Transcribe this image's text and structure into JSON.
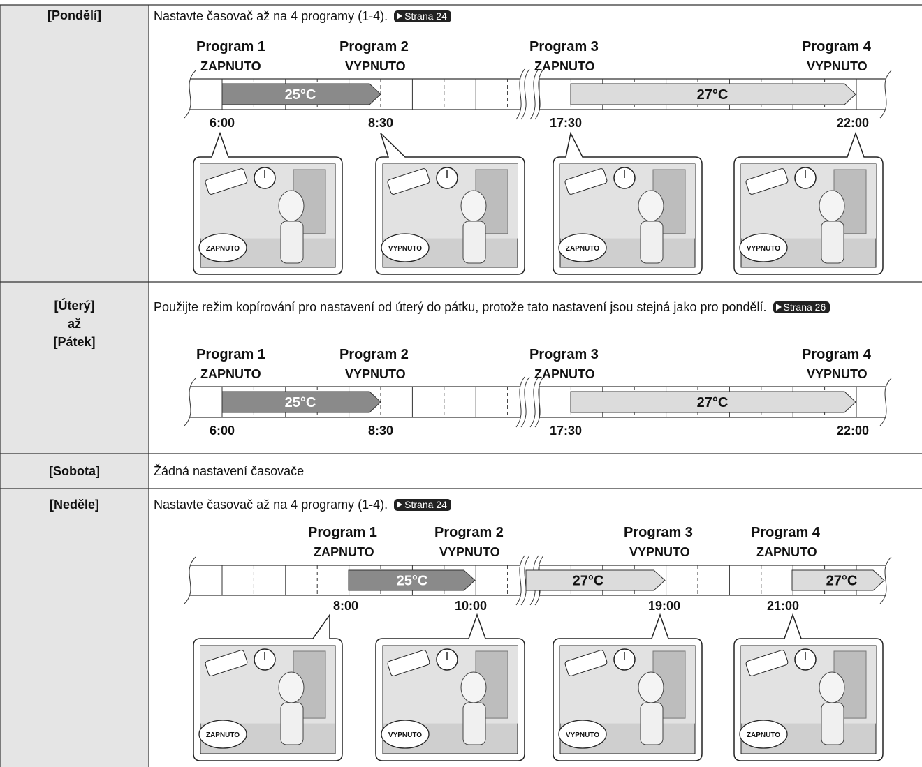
{
  "rows": [
    {
      "day": [
        "[Pondělí]"
      ],
      "text": "Nastavte časovač až na 4 programy (1-4).",
      "link": "Strana 24",
      "programs": [
        {
          "name": "Program 1",
          "state": "ZAPNUTO",
          "time": "6:00"
        },
        {
          "name": "Program 2",
          "state": "VYPNUTO",
          "time": "8:30"
        },
        {
          "name": "Program 3",
          "state": "ZAPNUTO",
          "time": "17:30"
        },
        {
          "name": "Program 4",
          "state": "VYPNUTO",
          "time": "22:00"
        }
      ],
      "temps": [
        "25°C",
        "27°C"
      ],
      "bubbles": [
        "ZAPNUTO",
        "VYPNUTO",
        "ZAPNUTO",
        "VYPNUTO"
      ]
    },
    {
      "day": [
        "[Úterý]",
        "až",
        "[Pátek]"
      ],
      "text": "Použijte režim kopírování pro nastavení od úterý do pátku, protože tato nastavení jsou stejná jako pro pondělí.",
      "link": "Strana 26",
      "programs": [
        {
          "name": "Program 1",
          "state": "ZAPNUTO",
          "time": "6:00"
        },
        {
          "name": "Program 2",
          "state": "VYPNUTO",
          "time": "8:30"
        },
        {
          "name": "Program 3",
          "state": "ZAPNUTO",
          "time": "17:30"
        },
        {
          "name": "Program 4",
          "state": "VYPNUTO",
          "time": "22:00"
        }
      ],
      "temps": [
        "25°C",
        "27°C"
      ]
    },
    {
      "day": [
        "[Sobota]"
      ],
      "text": "Žádná nastavení časovače"
    },
    {
      "day": [
        "[Neděle]"
      ],
      "text": "Nastavte časovač až na 4 programy (1-4).",
      "link": "Strana 24",
      "programs": [
        {
          "name": "Program 1",
          "state": "ZAPNUTO",
          "time": "8:00"
        },
        {
          "name": "Program 2",
          "state": "VYPNUTO",
          "time": "10:00"
        },
        {
          "name": "Program 3",
          "state": "VYPNUTO",
          "time": "19:00"
        },
        {
          "name": "Program 4",
          "state": "ZAPNUTO",
          "time": "21:00"
        }
      ],
      "temps": [
        "25°C",
        "27°C",
        "27°C"
      ],
      "bubbles": [
        "ZAPNUTO",
        "VYPNUTO",
        "VYPNUTO",
        "ZAPNUTO"
      ]
    }
  ]
}
